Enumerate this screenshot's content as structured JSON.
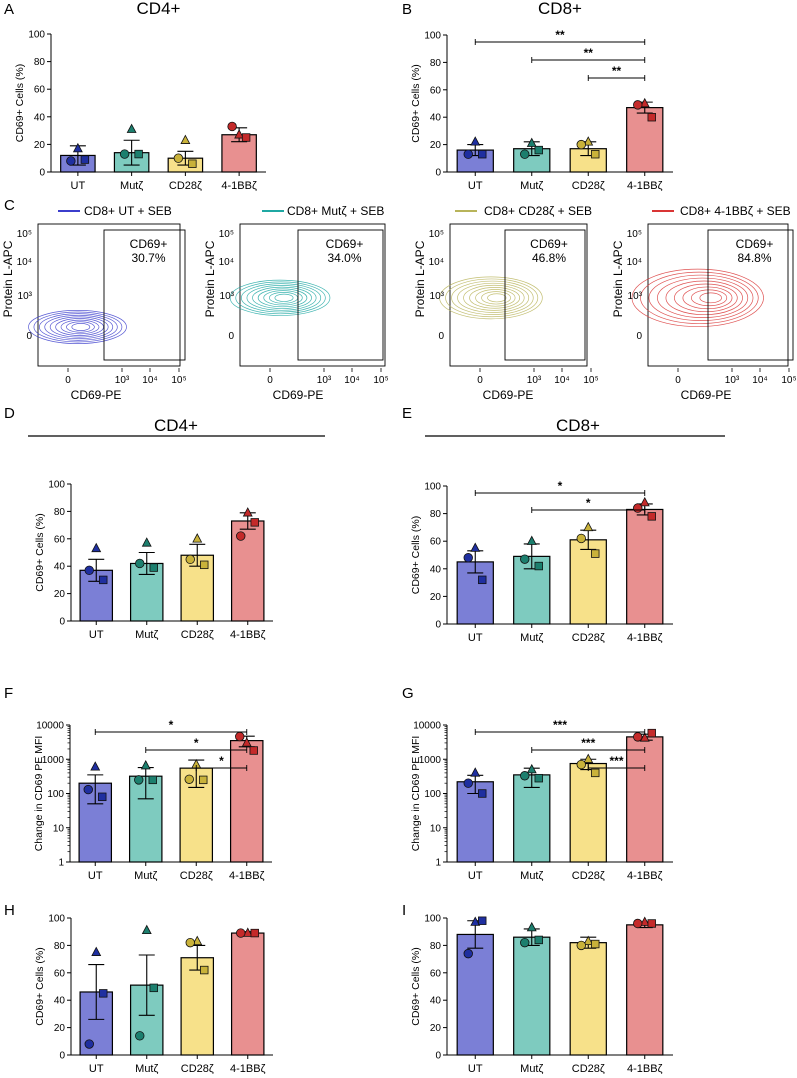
{
  "figure": {
    "legend_c": [
      {
        "label": "CD8+ UT + SEB",
        "color": "#3b3dcc"
      },
      {
        "label": "CD8+ Mutζ + SEB",
        "color": "#1fa8a3"
      },
      {
        "label": "CD8+ CD28ζ + SEB",
        "color": "#b8b45a"
      },
      {
        "label": "CD8+ 4-1BBζ + SEB",
        "color": "#d93535"
      }
    ],
    "group_titles": {
      "d": "CD4+",
      "e": "CD8+"
    }
  },
  "chart_data": [
    {
      "panel": "A",
      "type": "bar",
      "title": "CD4+",
      "ylabel": "CD69+ Cells (%)",
      "ylim": [
        0,
        100
      ],
      "yticks": [
        0,
        20,
        40,
        60,
        80,
        100
      ],
      "categories": [
        "UT",
        "Mutζ",
        "CD28ζ",
        "4-1BBζ"
      ],
      "values": [
        12,
        14,
        10,
        27
      ],
      "errors": [
        7,
        9,
        5,
        5
      ],
      "points": [
        [
          17,
          8,
          9
        ],
        [
          31,
          13,
          13
        ],
        [
          23,
          10,
          6
        ],
        [
          27,
          33,
          25
        ]
      ],
      "significance": []
    },
    {
      "panel": "B",
      "type": "bar",
      "title": "CD8+",
      "ylabel": "CD69+ Cells (%)",
      "ylim": [
        0,
        100
      ],
      "yticks": [
        0,
        20,
        40,
        60,
        80,
        100
      ],
      "categories": [
        "UT",
        "Mutζ",
        "CD28ζ",
        "4-1BBζ"
      ],
      "values": [
        16,
        17,
        17,
        47
      ],
      "errors": [
        4,
        5,
        5,
        4
      ],
      "points": [
        [
          22,
          13,
          13
        ],
        [
          21,
          13,
          16
        ],
        [
          22,
          20,
          13
        ],
        [
          50,
          49,
          40
        ]
      ],
      "significance": [
        {
          "from": 0,
          "to": 3,
          "label": "**"
        },
        {
          "from": 1,
          "to": 3,
          "label": "**"
        },
        {
          "from": 2,
          "to": 3,
          "label": "**"
        }
      ]
    },
    {
      "panel": "C",
      "type": "table",
      "xlabel": "CD69-PE",
      "ylabel": "Protein L-APC",
      "plots": [
        {
          "gate_label": "CD69+",
          "percent": "30.7%"
        },
        {
          "gate_label": "CD69+",
          "percent": "34.0%"
        },
        {
          "gate_label": "CD69+",
          "percent": "46.8%"
        },
        {
          "gate_label": "CD69+",
          "percent": "84.8%"
        }
      ],
      "ticks": {
        "x": [
          "0",
          "10³",
          "10⁴",
          "10⁵"
        ],
        "y": [
          "0",
          "10³",
          "10⁴",
          "10⁵"
        ]
      }
    },
    {
      "panel": "D",
      "type": "bar",
      "title": "",
      "ylabel": "CD69+ Cells (%)",
      "ylim": [
        0,
        100
      ],
      "yticks": [
        0,
        20,
        40,
        60,
        80,
        100
      ],
      "categories": [
        "UT",
        "Mutζ",
        "CD28ζ",
        "4-1BBζ"
      ],
      "values": [
        37,
        42,
        48,
        73
      ],
      "errors": [
        8,
        8,
        8,
        6
      ],
      "points": [
        [
          53,
          37,
          30
        ],
        [
          57,
          42,
          39
        ],
        [
          60,
          45,
          41
        ],
        [
          79,
          62,
          72
        ]
      ],
      "significance": []
    },
    {
      "panel": "E",
      "type": "bar",
      "title": "",
      "ylabel": "CD69+ Cells (%)",
      "ylim": [
        0,
        100
      ],
      "yticks": [
        0,
        20,
        40,
        60,
        80,
        100
      ],
      "categories": [
        "UT",
        "Mutζ",
        "CD28ζ",
        "4-1BBζ"
      ],
      "values": [
        45,
        49,
        61,
        83
      ],
      "errors": [
        8,
        9,
        7,
        4
      ],
      "points": [
        [
          55,
          48,
          32
        ],
        [
          60,
          47,
          42
        ],
        [
          70,
          62,
          51
        ],
        [
          88,
          84,
          78
        ]
      ],
      "significance": [
        {
          "from": 0,
          "to": 3,
          "label": "*"
        },
        {
          "from": 1,
          "to": 3,
          "label": "*"
        }
      ]
    },
    {
      "panel": "F",
      "type": "bar",
      "scale": "log",
      "title": "",
      "ylabel": "Change in CD69 PE MFI",
      "ylim": [
        1,
        10000
      ],
      "yticks": [
        "1",
        "10",
        "100",
        "1000",
        "10000"
      ],
      "categories": [
        "UT",
        "Mutζ",
        "CD28ζ",
        "4-1BBζ"
      ],
      "values": [
        200,
        320,
        550,
        3500
      ],
      "errors": [
        150,
        250,
        400,
        1200
      ],
      "points": [
        [
          600,
          130,
          80
        ],
        [
          650,
          250,
          250
        ],
        [
          700,
          260,
          250
        ],
        [
          3000,
          4600,
          1800
        ]
      ],
      "significance": [
        {
          "from": 0,
          "to": 3,
          "label": "*"
        },
        {
          "from": 1,
          "to": 3,
          "label": "*"
        },
        {
          "from": 2,
          "to": 3,
          "label": "*"
        }
      ]
    },
    {
      "panel": "G",
      "type": "bar",
      "scale": "log",
      "title": "",
      "ylabel": "Change in CD69 PE MFI",
      "ylim": [
        1,
        10000
      ],
      "yticks": [
        "1",
        "10",
        "100",
        "1000",
        "10000"
      ],
      "categories": [
        "UT",
        "Mutζ",
        "CD28ζ",
        "4-1BBζ"
      ],
      "values": [
        220,
        350,
        750,
        4500
      ],
      "errors": [
        120,
        200,
        250,
        900
      ],
      "points": [
        [
          400,
          200,
          100
        ],
        [
          500,
          330,
          280
        ],
        [
          1000,
          700,
          400
        ],
        [
          4200,
          4500,
          5800
        ]
      ],
      "significance": [
        {
          "from": 0,
          "to": 3,
          "label": "***"
        },
        {
          "from": 1,
          "to": 3,
          "label": "***"
        },
        {
          "from": 2,
          "to": 3,
          "label": "***"
        }
      ]
    },
    {
      "panel": "H",
      "type": "bar",
      "title": "",
      "ylabel": "CD69+ Cells (%)",
      "ylim": [
        0,
        100
      ],
      "yticks": [
        0,
        20,
        40,
        60,
        80,
        100
      ],
      "categories": [
        "UT",
        "Mutζ",
        "CD28ζ",
        "4-1BBζ"
      ],
      "values": [
        46,
        51,
        71,
        89
      ],
      "errors": [
        20,
        22,
        9,
        1
      ],
      "points": [
        [
          75,
          8,
          45
        ],
        [
          91,
          14,
          49
        ],
        [
          83,
          82,
          62
        ],
        [
          89,
          89,
          89
        ]
      ],
      "significance": []
    },
    {
      "panel": "I",
      "type": "bar",
      "title": "",
      "ylabel": "CD69+ Cells (%)",
      "ylim": [
        0,
        100
      ],
      "yticks": [
        0,
        20,
        40,
        60,
        80,
        100
      ],
      "categories": [
        "UT",
        "Mutζ",
        "CD28ζ",
        "4-1BBζ"
      ],
      "values": [
        88,
        86,
        82,
        95
      ],
      "errors": [
        10,
        6,
        4,
        2
      ],
      "points": [
        [
          97,
          74,
          98
        ],
        [
          93,
          82,
          84
        ],
        [
          83,
          80,
          81
        ],
        [
          97,
          96,
          96
        ]
      ],
      "significance": []
    }
  ]
}
